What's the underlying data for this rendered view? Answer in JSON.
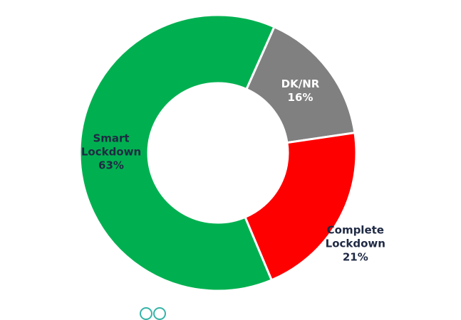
{
  "chart_data": {
    "type": "pie",
    "variant": "donut",
    "title": "",
    "slices": [
      {
        "label_lines": [
          "DK/NR",
          "16%"
        ],
        "value": 16,
        "color": "#808080",
        "label_color": "#ffffff"
      },
      {
        "label_lines": [
          "Complete",
          "Lockdown",
          "21%"
        ],
        "value": 21,
        "color": "#ff0000",
        "label_color": "#1f2a44"
      },
      {
        "label_lines": [
          "Smart",
          "Lockdown",
          "63%"
        ],
        "value": 63,
        "color": "#00b050",
        "label_color": "#1f2a44"
      }
    ],
    "legend": "none"
  }
}
